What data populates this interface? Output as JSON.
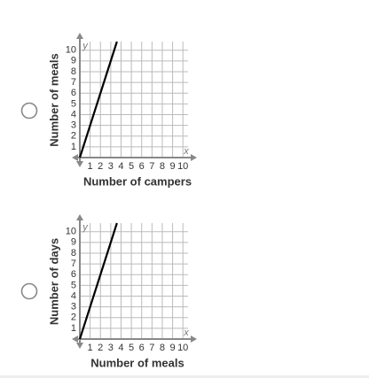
{
  "chart_data": [
    {
      "type": "line",
      "x_label": "Number of campers",
      "y_label": "Number of meals",
      "x_axis_name": "x",
      "y_axis_name": "y",
      "x": [
        0,
        3.6
      ],
      "values": [
        0,
        10.8
      ],
      "color": "#000000",
      "xlim": [
        0,
        10.5
      ],
      "ylim": [
        0,
        10.8
      ],
      "xticks": [
        1,
        2,
        3,
        4,
        5,
        6,
        7,
        8,
        9,
        10
      ],
      "yticks": [
        1,
        2,
        3,
        4,
        5,
        6,
        7,
        8,
        9,
        10
      ],
      "grid": true
    },
    {
      "type": "line",
      "x_label": "Number of meals",
      "y_label": "Number of days",
      "x_axis_name": "x",
      "y_axis_name": "y",
      "x": [
        0,
        3.6
      ],
      "values": [
        0,
        10.8
      ],
      "color": "#000000",
      "xlim": [
        0,
        10.5
      ],
      "ylim": [
        0,
        10.8
      ],
      "xticks": [
        1,
        2,
        3,
        4,
        5,
        6,
        7,
        8,
        9,
        10
      ],
      "yticks": [
        1,
        2,
        3,
        4,
        5,
        6,
        7,
        8,
        9,
        10
      ],
      "grid": true
    }
  ]
}
